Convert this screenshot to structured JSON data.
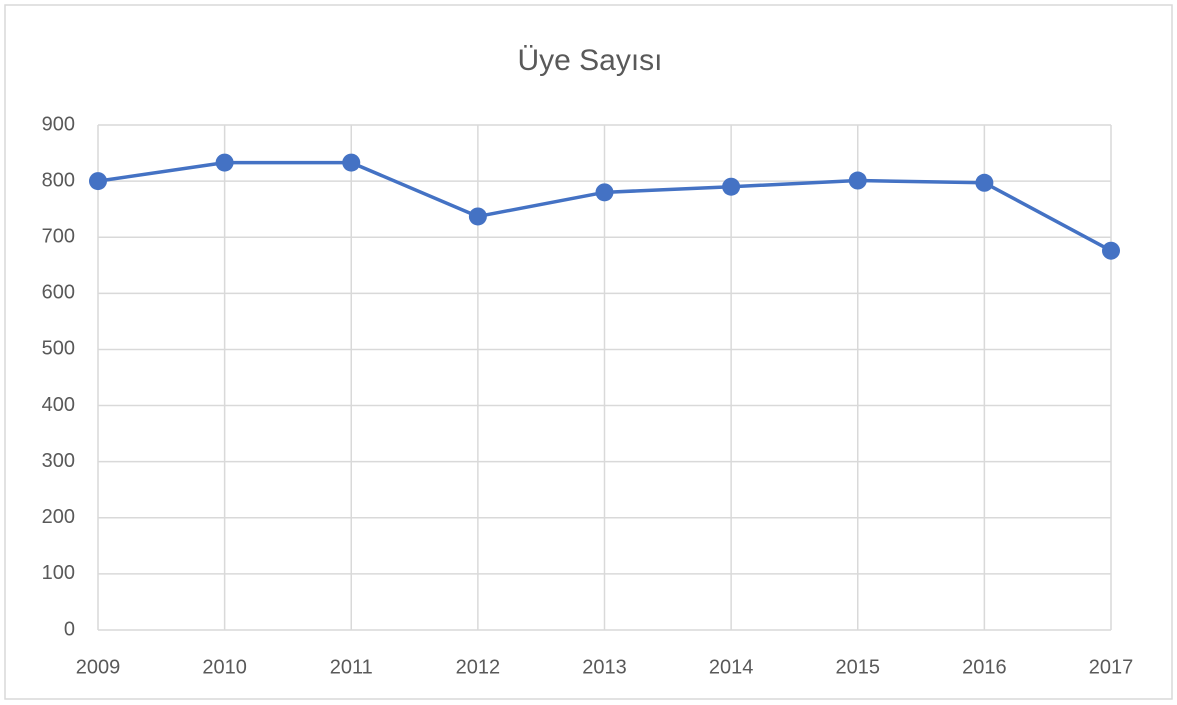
{
  "chart_data": {
    "type": "line",
    "title": "Üye Sayısı",
    "categories": [
      "2009",
      "2010",
      "2011",
      "2012",
      "2013",
      "2014",
      "2015",
      "2016",
      "2017"
    ],
    "series": [
      {
        "name": "Üye Sayısı",
        "color": "#4472c4",
        "values": [
          800,
          833,
          833,
          737,
          780,
          790,
          801,
          797,
          676
        ]
      }
    ],
    "ylim": [
      0,
      900
    ],
    "yticks": [
      0,
      100,
      200,
      300,
      400,
      500,
      600,
      700,
      800,
      900
    ],
    "grid": true
  }
}
